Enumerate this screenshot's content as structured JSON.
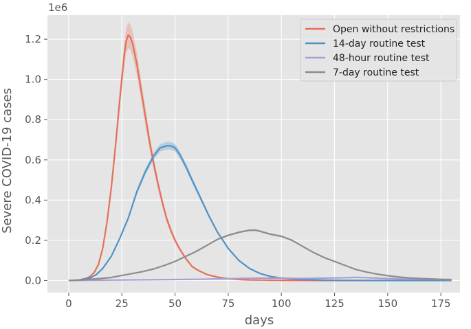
{
  "chart_data": {
    "type": "line",
    "xlabel": "days",
    "ylabel": "Severe COVID-19 cases",
    "y_scale_label": "1e6",
    "xlim": [
      -10,
      184
    ],
    "ylim": [
      -0.06,
      1.32
    ],
    "x_ticks": [
      0,
      25,
      50,
      75,
      100,
      125,
      150,
      175
    ],
    "y_ticks": [
      0.0,
      0.2,
      0.4,
      0.6,
      0.8,
      1.0,
      1.2
    ],
    "y_tick_labels": [
      "0.0",
      "0.2",
      "0.4",
      "0.6",
      "0.8",
      "1.0",
      "1.2"
    ],
    "grid": true,
    "legend_position": "top-right",
    "colors": {
      "background": "#e5e5e5",
      "grid": "#ffffff"
    },
    "series": [
      {
        "name": "Open without restrictions",
        "color": "#e5705a",
        "band": 0.05,
        "x": [
          0,
          5,
          8,
          10,
          12,
          14,
          16,
          18,
          20,
          22,
          24,
          26,
          27,
          28,
          29,
          30,
          32,
          34,
          36,
          38,
          40,
          42,
          44,
          46,
          48,
          50,
          52,
          55,
          58,
          61,
          65,
          70,
          75,
          80,
          85,
          90,
          100,
          120,
          150,
          180
        ],
        "values": [
          0.0,
          0.003,
          0.01,
          0.02,
          0.04,
          0.08,
          0.16,
          0.29,
          0.46,
          0.67,
          0.9,
          1.11,
          1.19,
          1.22,
          1.21,
          1.18,
          1.08,
          0.95,
          0.82,
          0.69,
          0.58,
          0.48,
          0.39,
          0.31,
          0.25,
          0.2,
          0.16,
          0.11,
          0.07,
          0.05,
          0.03,
          0.017,
          0.009,
          0.005,
          0.003,
          0.002,
          0.001,
          0.0,
          0.0,
          0.0
        ]
      },
      {
        "name": "14-day routine test",
        "color": "#4e93c7",
        "band": 0.025,
        "x": [
          0,
          5,
          10,
          13,
          16,
          20,
          24,
          28,
          32,
          36,
          40,
          43,
          46,
          48,
          50,
          52,
          55,
          58,
          62,
          66,
          70,
          75,
          80,
          85,
          90,
          95,
          100,
          110,
          120,
          140,
          160,
          180
        ],
        "values": [
          0.0,
          0.003,
          0.012,
          0.03,
          0.06,
          0.12,
          0.21,
          0.31,
          0.44,
          0.54,
          0.62,
          0.66,
          0.67,
          0.67,
          0.66,
          0.63,
          0.57,
          0.5,
          0.41,
          0.32,
          0.24,
          0.16,
          0.1,
          0.06,
          0.035,
          0.02,
          0.012,
          0.005,
          0.002,
          0.0,
          0.0,
          0.0
        ]
      },
      {
        "name": "48-hour routine test",
        "color": "#a89ed4",
        "band": 0.008,
        "x": [
          0,
          20,
          40,
          60,
          70,
          80,
          90,
          100,
          110,
          120,
          130,
          135,
          140,
          150,
          160,
          170,
          180
        ],
        "values": [
          0.0,
          0.002,
          0.004,
          0.006,
          0.008,
          0.01,
          0.012,
          0.012,
          0.01,
          0.012,
          0.014,
          0.016,
          0.014,
          0.01,
          0.008,
          0.006,
          0.004
        ]
      },
      {
        "name": "7-day routine test",
        "color": "#8c8c8c",
        "band": 0.012,
        "x": [
          0,
          5,
          10,
          15,
          20,
          25,
          30,
          35,
          40,
          45,
          50,
          55,
          60,
          65,
          70,
          75,
          80,
          85,
          88,
          90,
          95,
          100,
          105,
          110,
          115,
          120,
          125,
          130,
          135,
          140,
          145,
          150,
          155,
          160,
          165,
          170,
          175,
          180
        ],
        "values": [
          0.0,
          0.002,
          0.006,
          0.01,
          0.015,
          0.025,
          0.035,
          0.045,
          0.058,
          0.075,
          0.095,
          0.12,
          0.145,
          0.175,
          0.205,
          0.225,
          0.24,
          0.25,
          0.25,
          0.245,
          0.23,
          0.22,
          0.2,
          0.17,
          0.14,
          0.115,
          0.095,
          0.075,
          0.055,
          0.042,
          0.032,
          0.024,
          0.018,
          0.013,
          0.01,
          0.008,
          0.006,
          0.005
        ]
      }
    ]
  }
}
